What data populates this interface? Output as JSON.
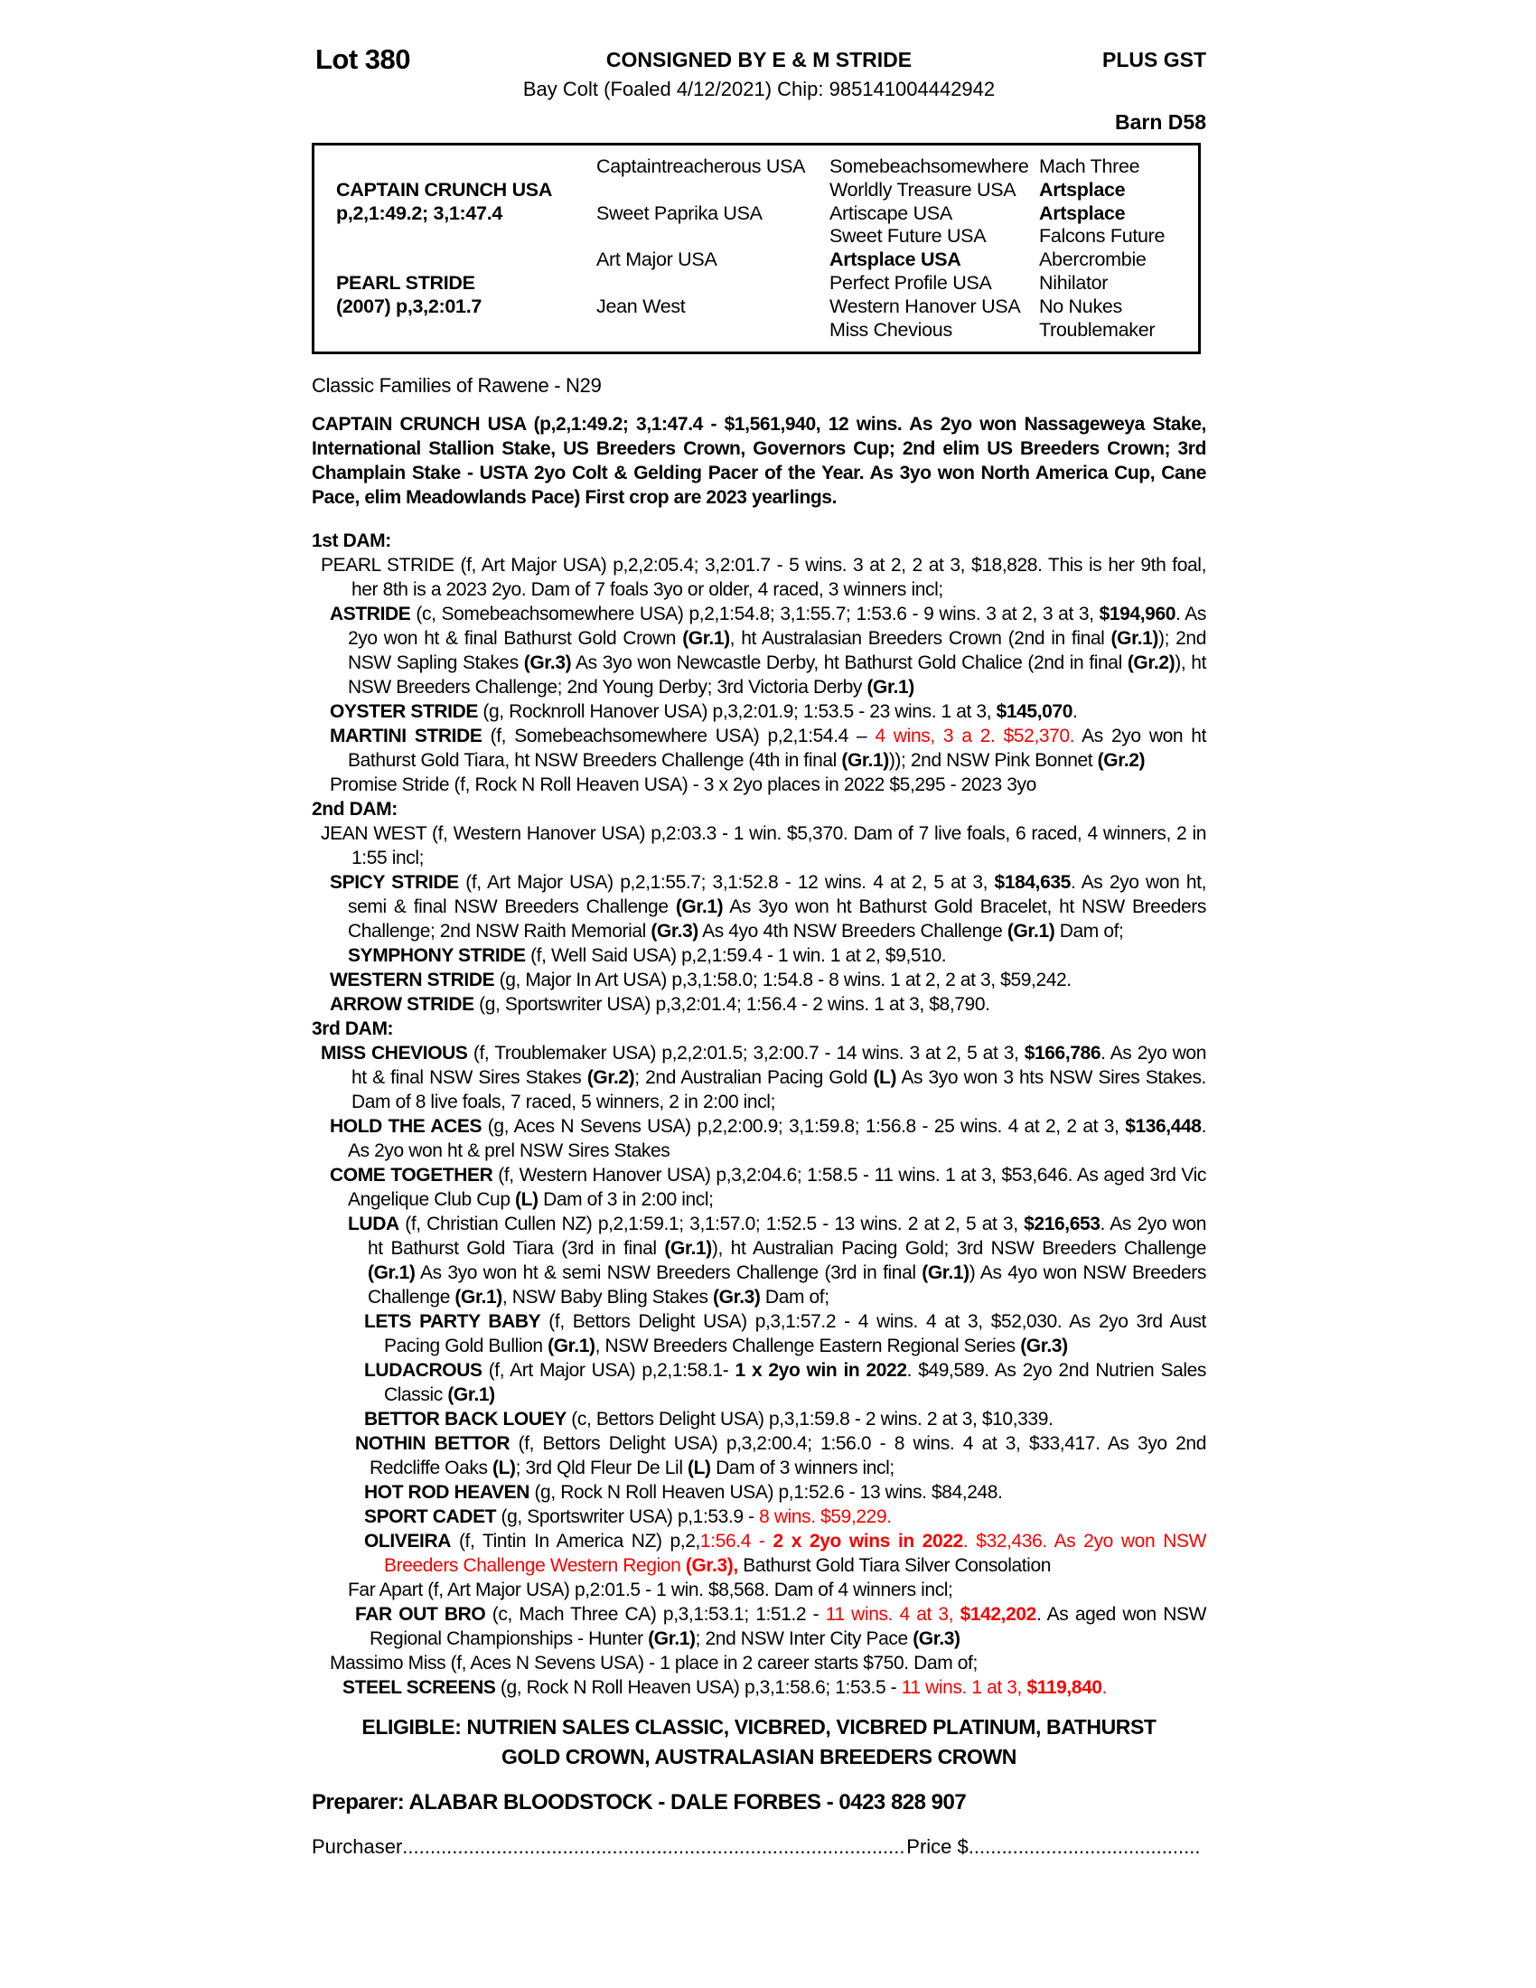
{
  "colors": {
    "red_highlight": "#f40000",
    "text": "#000000"
  },
  "header": {
    "lot": "Lot 380",
    "consigned": "CONSIGNED BY E & M STRIDE",
    "plus_gst": "PLUS GST",
    "foal_line": "Bay Colt (Foaled 4/12/2021) Chip: 985141004442942",
    "barn": "Barn D58"
  },
  "pedigree": {
    "cells": [
      {
        "r": 1,
        "c": 2,
        "t": "Captaintreacherous USA"
      },
      {
        "r": 1,
        "c": 3,
        "t": "Somebeachsomewhere"
      },
      {
        "r": 1,
        "c": 4,
        "t": "Mach Three"
      },
      {
        "r": 2,
        "c": 1,
        "t": "CAPTAIN CRUNCH USA",
        "b": 1
      },
      {
        "r": 2,
        "c": 3,
        "t": "Worldly Treasure USA"
      },
      {
        "r": 2,
        "c": 4,
        "t": "Artsplace",
        "b": 1
      },
      {
        "r": 3,
        "c": 1,
        "t": "p,2,1:49.2; 3,1:47.4",
        "b": 1
      },
      {
        "r": 3,
        "c": 2,
        "t": "Sweet Paprika USA"
      },
      {
        "r": 3,
        "c": 3,
        "t": "Artiscape USA"
      },
      {
        "r": 3,
        "c": 4,
        "t": "Artsplace",
        "b": 1
      },
      {
        "r": 4,
        "c": 3,
        "t": "Sweet Future USA"
      },
      {
        "r": 4,
        "c": 4,
        "t": "Falcons Future"
      },
      {
        "r": 5,
        "c": 2,
        "t": "Art Major USA"
      },
      {
        "r": 5,
        "c": 3,
        "t": "Artsplace USA",
        "b": 1
      },
      {
        "r": 5,
        "c": 4,
        "t": "Abercrombie"
      },
      {
        "r": 6,
        "c": 1,
        "t": "PEARL STRIDE",
        "b": 1
      },
      {
        "r": 6,
        "c": 3,
        "t": "Perfect Profile USA"
      },
      {
        "r": 6,
        "c": 4,
        "t": "Nihilator"
      },
      {
        "r": 7,
        "c": 1,
        "t": "(2007) p,3,2:01.7",
        "b": 1
      },
      {
        "r": 7,
        "c": 2,
        "t": "Jean West"
      },
      {
        "r": 7,
        "c": 3,
        "t": "Western Hanover USA"
      },
      {
        "r": 7,
        "c": 4,
        "t": "No Nukes"
      },
      {
        "r": 8,
        "c": 3,
        "t": "Miss Chevious"
      },
      {
        "r": 8,
        "c": 4,
        "t": "Troublemaker"
      }
    ]
  },
  "family_line": "Classic Families of Rawene - N29",
  "sire_summary": "CAPTAIN CRUNCH USA (p,2,1:49.2; 3,1:47.4 - $1,561,940, 12 wins. As 2yo won Nassageweya Stake, International Stallion Stake, US Breeders Crown, Governors Cup; 2nd elim US Breeders Crown; 3rd Champlain Stake - USTA 2yo Colt & Gelding Pacer of the Year. As 3yo won North America Cup, Cane Pace, elim Meadowlands Pace) First crop are 2023 yearlings.",
  "produce": [
    {
      "type": "heading",
      "text": "1st DAM:"
    },
    {
      "type": "entry",
      "ind": "1",
      "segments": [
        {
          "t": "PEARL STRIDE (f, Art Major USA) p,2,2:05.4; 3,2:01.7 - 5 wins. 3 at 2, 2 at 3, $18,828. This is her 9th foal, her 8th is a 2023 2yo. Dam of 7 foals 3yo or older, 4 raced, 3 winners incl;"
        }
      ]
    },
    {
      "type": "entry",
      "ind": "2",
      "segments": [
        {
          "t": "ASTRIDE",
          "b": 1
        },
        {
          "t": " (c, Somebeachsomewhere USA) p,2,1:54.8; 3,1:55.7; 1:53.6 - 9 wins. 3 at 2, 3 at 3, "
        },
        {
          "t": "$194,960",
          "b": 1
        },
        {
          "t": ". As 2yo won ht & final Bathurst Gold Crown "
        },
        {
          "t": "(Gr.1)",
          "b": 1
        },
        {
          "t": ", ht Australasian Breeders Crown (2nd in final "
        },
        {
          "t": "(Gr.1)",
          "b": 1
        },
        {
          "t": "); 2nd NSW Sapling Stakes "
        },
        {
          "t": "(Gr.3)",
          "b": 1
        },
        {
          "t": " As 3yo won Newcastle Derby, ht Bathurst Gold Chalice (2nd in final "
        },
        {
          "t": "(Gr.2)",
          "b": 1
        },
        {
          "t": "), ht NSW Breeders Challenge; 2nd Young Derby; 3rd Victoria Derby "
        },
        {
          "t": "(Gr.1)",
          "b": 1
        }
      ]
    },
    {
      "type": "entry",
      "ind": "2",
      "segments": [
        {
          "t": "OYSTER STRIDE",
          "b": 1
        },
        {
          "t": " (g, Rocknroll Hanover USA) p,3,2:01.9; 1:53.5 - 23 wins. 1 at 3, "
        },
        {
          "t": "$145,070",
          "b": 1
        },
        {
          "t": "."
        }
      ]
    },
    {
      "type": "entry",
      "ind": "2",
      "segments": [
        {
          "t": "MARTINI STRIDE",
          "b": 1
        },
        {
          "t": " (f, Somebeachsomewhere USA) p,2,1:54.4 – "
        },
        {
          "t": "4 wins, 3 a 2. $52,370.",
          "r": 1
        },
        {
          "t": " As 2yo won ht Bathurst Gold Tiara, ht NSW Breeders Challenge (4th in final "
        },
        {
          "t": "(Gr.1)",
          "b": 1
        },
        {
          "t": ")); 2nd NSW Pink Bonnet "
        },
        {
          "t": "(Gr.2)",
          "b": 1
        }
      ]
    },
    {
      "type": "entry",
      "ind": "2",
      "segments": [
        {
          "t": "Promise Stride (f, Rock N Roll Heaven USA) - 3 x 2yo places in 2022 $5,295 - 2023 3yo"
        }
      ]
    },
    {
      "type": "heading",
      "text": "2nd DAM:"
    },
    {
      "type": "entry",
      "ind": "1",
      "segments": [
        {
          "t": "JEAN WEST (f, Western Hanover USA) p,2:03.3 - 1 win. $5,370. Dam of 7 live foals, 6 raced, 4 winners, 2 in 1:55 incl;"
        }
      ]
    },
    {
      "type": "entry",
      "ind": "2",
      "segments": [
        {
          "t": "SPICY STRIDE",
          "b": 1
        },
        {
          "t": " (f, Art Major USA) p,2,1:55.7; 3,1:52.8 - 12 wins. 4 at 2, 5 at 3, "
        },
        {
          "t": "$184,635",
          "b": 1
        },
        {
          "t": ". As 2yo won ht, semi & final NSW Breeders Challenge "
        },
        {
          "t": "(Gr.1)",
          "b": 1
        },
        {
          "t": " As 3yo won ht Bathurst Gold Bracelet, ht NSW Breeders Challenge; 2nd NSW Raith Memorial "
        },
        {
          "t": "(Gr.3)",
          "b": 1
        },
        {
          "t": " As 4yo 4th NSW Breeders Challenge "
        },
        {
          "t": "(Gr.1)",
          "b": 1
        },
        {
          "t": " Dam of;"
        }
      ]
    },
    {
      "type": "entry",
      "ind": "3",
      "segments": [
        {
          "t": "SYMPHONY STRIDE",
          "b": 1
        },
        {
          "t": " (f, Well Said USA) p,2,1:59.4 - 1 win. 1 at 2, $9,510."
        }
      ]
    },
    {
      "type": "entry",
      "ind": "2",
      "segments": [
        {
          "t": "WESTERN STRIDE",
          "b": 1
        },
        {
          "t": " (g, Major In Art USA) p,3,1:58.0; 1:54.8 - 8 wins. 1 at 2, 2 at 3, $59,242."
        }
      ]
    },
    {
      "type": "entry",
      "ind": "2",
      "segments": [
        {
          "t": "ARROW STRIDE",
          "b": 1
        },
        {
          "t": " (g, Sportswriter USA) p,3,2:01.4; 1:56.4 - 2 wins. 1 at 3, $8,790."
        }
      ]
    },
    {
      "type": "heading",
      "text": "3rd DAM:"
    },
    {
      "type": "entry",
      "ind": "1",
      "segments": [
        {
          "t": "MISS CHEVIOUS",
          "b": 1
        },
        {
          "t": " (f, Troublemaker USA) p,2,2:01.5; 3,2:00.7 - 14 wins. 3 at 2, 5 at 3, "
        },
        {
          "t": "$166,786",
          "b": 1
        },
        {
          "t": ". As 2yo won ht & final NSW Sires Stakes "
        },
        {
          "t": "(Gr.2)",
          "b": 1
        },
        {
          "t": "; 2nd Australian Pacing Gold "
        },
        {
          "t": "(L)",
          "b": 1
        },
        {
          "t": " As 3yo won 3 hts NSW Sires Stakes. Dam of 8 live foals, 7 raced, 5 winners, 2 in 2:00 incl;"
        }
      ]
    },
    {
      "type": "entry",
      "ind": "2",
      "segments": [
        {
          "t": "HOLD THE ACES",
          "b": 1
        },
        {
          "t": " (g, Aces N Sevens USA) p,2,2:00.9; 3,1:59.8; 1:56.8 - 25 wins. 4 at 2, 2 at 3, "
        },
        {
          "t": "$136,448",
          "b": 1
        },
        {
          "t": ". As 2yo won ht & prel NSW Sires Stakes"
        }
      ]
    },
    {
      "type": "entry",
      "ind": "2",
      "segments": [
        {
          "t": "COME TOGETHER",
          "b": 1
        },
        {
          "t": " (f, Western Hanover USA) p,3,2:04.6; 1:58.5 - 11 wins. 1 at 3, $53,646. As aged 3rd Vic Angelique Club Cup "
        },
        {
          "t": "(L)",
          "b": 1
        },
        {
          "t": " Dam of 3 in 2:00 incl;"
        }
      ]
    },
    {
      "type": "entry",
      "ind": "3",
      "segments": [
        {
          "t": "LUDA",
          "b": 1
        },
        {
          "t": " (f, Christian Cullen NZ) p,2,1:59.1; 3,1:57.0; 1:52.5 - 13 wins. 2 at 2, 5 at 3, "
        },
        {
          "t": "$216,653",
          "b": 1
        },
        {
          "t": ". As 2yo won ht Bathurst Gold Tiara (3rd in final "
        },
        {
          "t": "(Gr.1)",
          "b": 1
        },
        {
          "t": "), ht Australian Pacing Gold; 3rd NSW Breeders Challenge "
        },
        {
          "t": "(Gr.1)",
          "b": 1
        },
        {
          "t": " As 3yo won ht & semi NSW Breeders Challenge (3rd in final "
        },
        {
          "t": "(Gr.1)",
          "b": 1
        },
        {
          "t": ") As 4yo won NSW Breeders Challenge "
        },
        {
          "t": "(Gr.1)",
          "b": 1
        },
        {
          "t": ", NSW Baby Bling Stakes "
        },
        {
          "t": "(Gr.3)",
          "b": 1
        },
        {
          "t": " Dam of;"
        }
      ]
    },
    {
      "type": "entry",
      "ind": "4",
      "segments": [
        {
          "t": "LETS PARTY BABY",
          "b": 1
        },
        {
          "t": " (f, Bettors Delight USA) p,3,1:57.2 - 4 wins. 4 at 3, $52,030. As 2yo 3rd Aust Pacing Gold Bullion "
        },
        {
          "t": "(Gr.1)",
          "b": 1
        },
        {
          "t": ", NSW Breeders Challenge Eastern Regional Series "
        },
        {
          "t": "(Gr.3)",
          "b": 1
        }
      ]
    },
    {
      "type": "entry",
      "ind": "4",
      "segments": [
        {
          "t": "LUDACROUS",
          "b": 1
        },
        {
          "t": " (f, Art Major USA) p,2,1:58.1- "
        },
        {
          "t": "1 x 2yo win in 2022",
          "b": 1
        },
        {
          "t": ". $49,589. As 2yo 2nd Nutrien Sales Classic "
        },
        {
          "t": "(Gr.1)",
          "b": 1
        }
      ]
    },
    {
      "type": "entry",
      "ind": "4",
      "segments": [
        {
          "t": "BETTOR BACK LOUEY",
          "b": 1
        },
        {
          "t": " (c, Bettors Delight USA) p,3,1:59.8 - 2 wins. 2 at 3, $10,339."
        }
      ]
    },
    {
      "type": "entry",
      "ind": "35",
      "segments": [
        {
          "t": "NOTHIN BETTOR",
          "b": 1
        },
        {
          "t": " (f, Bettors Delight USA) p,3,2:00.4; 1:56.0 - 8 wins. 4 at 3, $33,417. As 3yo 2nd Redcliffe Oaks "
        },
        {
          "t": "(L)",
          "b": 1
        },
        {
          "t": "; 3rd Qld Fleur De Lil "
        },
        {
          "t": "(L)",
          "b": 1
        },
        {
          "t": "  Dam of 3 winners incl;"
        }
      ]
    },
    {
      "type": "entry",
      "ind": "4",
      "segments": [
        {
          "t": "HOT ROD HEAVEN",
          "b": 1
        },
        {
          "t": " (g, Rock N Roll Heaven USA) p,1:52.6 - 13 wins. $84,248."
        }
      ]
    },
    {
      "type": "entry",
      "ind": "4",
      "segments": [
        {
          "t": "SPORT CADET",
          "b": 1
        },
        {
          "t": " (g, Sportswriter USA) p,1:53.9 - "
        },
        {
          "t": "8 wins. $59,229.",
          "r": 1
        }
      ]
    },
    {
      "type": "entry",
      "ind": "4",
      "segments": [
        {
          "t": "OLIVEIRA",
          "b": 1
        },
        {
          "t": " (f, Tintin In America NZ) p,2,"
        },
        {
          "t": "1:56.4 - ",
          "r": 1
        },
        {
          "t": "2 x 2yo wins in 2022",
          "b": 1,
          "r": 1
        },
        {
          "t": ". $32,436. As 2yo won NSW Breeders Challenge Western Region ",
          "r": 1
        },
        {
          "t": "(Gr.3),",
          "b": 1,
          "r": 1
        },
        {
          "t": " Bathurst Gold Tiara Silver Consolation"
        }
      ]
    },
    {
      "type": "entry",
      "ind": "3",
      "segments": [
        {
          "t": "Far Apart (f, Art Major USA) p,2:01.5 - 1 win. $8,568. Dam of 4 winners incl;"
        }
      ]
    },
    {
      "type": "entry",
      "ind": "35",
      "segments": [
        {
          "t": "FAR OUT BRO",
          "b": 1
        },
        {
          "t": " (c, Mach Three CA) p,3,1:53.1; 1:51.2 - "
        },
        {
          "t": "11 wins. 4 at 3, ",
          "r": 1
        },
        {
          "t": "$142,202",
          "b": 1,
          "r": 1
        },
        {
          "t": ". As aged won NSW Regional Championships - Hunter "
        },
        {
          "t": "(Gr.1)",
          "b": 1
        },
        {
          "t": "; 2nd NSW Inter City Pace "
        },
        {
          "t": "(Gr.3)",
          "b": 1
        }
      ]
    },
    {
      "type": "entry",
      "ind": "2",
      "segments": [
        {
          "t": "Massimo Miss (f, Aces N Sevens USA) - 1 place in 2 career starts $750. Dam of;"
        }
      ]
    },
    {
      "type": "entry",
      "ind": "25",
      "segments": [
        {
          "t": "STEEL SCREENS",
          "b": 1
        },
        {
          "t": " (g, Rock N Roll Heaven USA) p,3,1:58.6; 1:53.5 - "
        },
        {
          "t": "11 wins. 1 at 3, ",
          "r": 1
        },
        {
          "t": "$119,840",
          "b": 1,
          "r": 1
        },
        {
          "t": ".",
          "r": 1
        }
      ]
    }
  ],
  "eligible": {
    "line1": "ELIGIBLE: NUTRIEN SALES CLASSIC, VICBRED, VICBRED PLATINUM, BATHURST",
    "line2": "GOLD CROWN, AUSTRALASIAN BREEDERS CROWN"
  },
  "footer": {
    "preparer": "Preparer: ALABAR BLOODSTOCK - DALE FORBES - 0423 828 907",
    "purchaser_label": "Purchaser",
    "price_label": "Price $",
    "dots": "............................................................................................................................................"
  }
}
